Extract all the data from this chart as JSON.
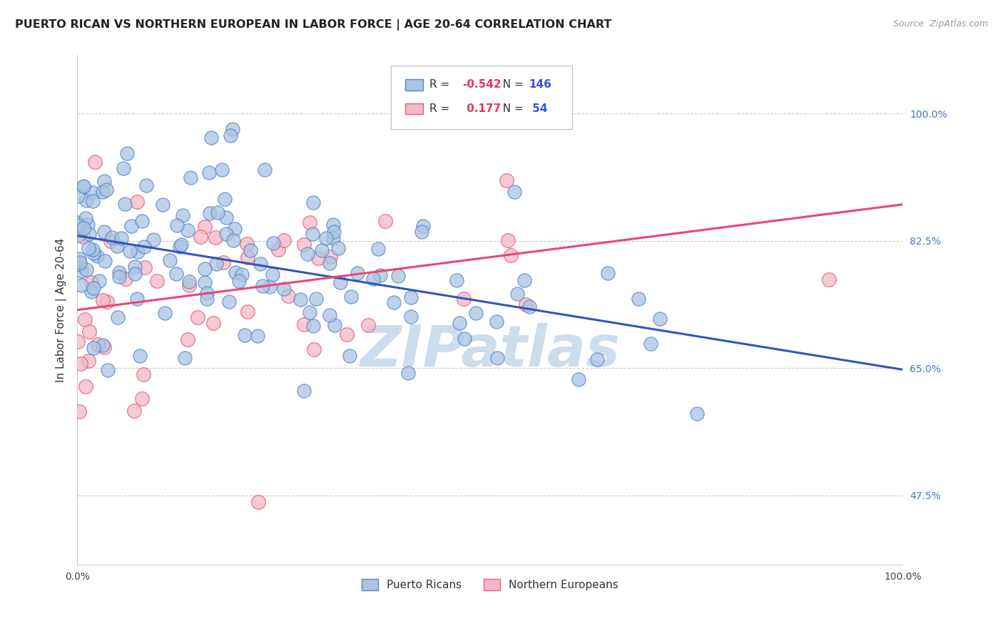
{
  "title": "PUERTO RICAN VS NORTHERN EUROPEAN IN LABOR FORCE | AGE 20-64 CORRELATION CHART",
  "source": "Source: ZipAtlas.com",
  "ylabel": "In Labor Force | Age 20-64",
  "xlim": [
    0.0,
    1.0
  ],
  "ylim": [
    0.38,
    1.08
  ],
  "ytick_positions": [
    0.475,
    0.65,
    0.825,
    1.0
  ],
  "ytick_labels": [
    "47.5%",
    "65.0%",
    "82.5%",
    "100.0%"
  ],
  "blue_R": -0.542,
  "blue_N": 146,
  "pink_R": 0.177,
  "pink_N": 54,
  "blue_color": "#aac4e2",
  "blue_edge": "#5588cc",
  "pink_color": "#f5b8c4",
  "pink_edge": "#e06080",
  "blue_line_color": "#3355bb",
  "pink_line_color": "#ee4477",
  "watermark": "ZIPatlas",
  "watermark_color": "#ccdded",
  "legend_blue_label": "Puerto Ricans",
  "legend_pink_label": "Northern Europeans",
  "background_color": "#ffffff",
  "grid_color": "#cccccc",
  "tick_color": "#4477cc",
  "title_fontsize": 11.5,
  "axis_label_fontsize": 11,
  "tick_fontsize": 10,
  "source_fontsize": 9,
  "blue_line_y0": 0.832,
  "blue_line_y1": 0.648,
  "pink_line_y0": 0.73,
  "pink_line_y1": 0.875
}
